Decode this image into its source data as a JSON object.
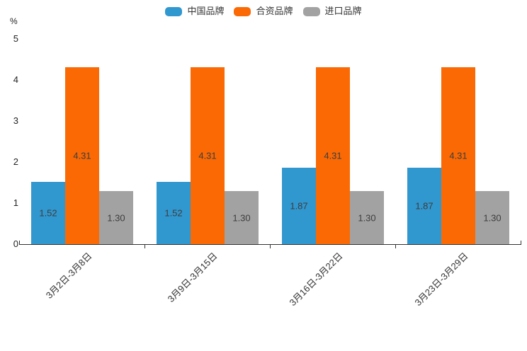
{
  "chart_data": {
    "type": "bar",
    "title": "",
    "unit_label": "%",
    "categories": [
      "3月2日-3月8日",
      "3月9日-3月15日",
      "3月16日-3月22日",
      "3月23日-3月29日"
    ],
    "series": [
      {
        "name": "中国品牌",
        "color": "#3197CF",
        "values": [
          1.52,
          1.52,
          1.87,
          1.87
        ]
      },
      {
        "name": "合资品牌",
        "color": "#FA6904",
        "values": [
          4.31,
          4.31,
          4.31,
          4.31
        ]
      },
      {
        "name": "进口品牌",
        "color": "#A2A2A2",
        "values": [
          1.3,
          1.3,
          1.3,
          1.3
        ]
      }
    ],
    "ylim": [
      0,
      5
    ],
    "yticks": [
      0,
      1,
      2,
      3,
      4,
      5
    ],
    "grid": false,
    "legend_position": "top-center",
    "value_labels": "inside-center",
    "value_label_decimals": 2,
    "x_label_rotation_deg": 45
  }
}
